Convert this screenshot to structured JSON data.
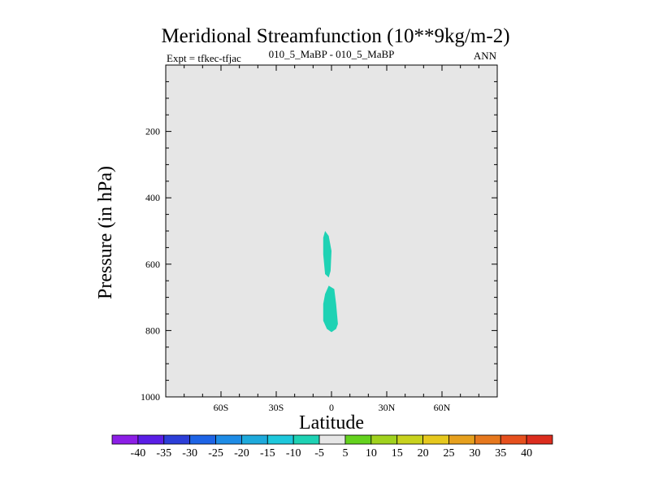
{
  "chart_data": {
    "type": "contour",
    "title": "Meridional Streamfunction (10**9kg/m-2)",
    "left_string": "Expt = tfkec-tfjac",
    "center_string": "010_5_MaBP - 010_5_MaBP",
    "right_string": "ANN",
    "xlabel": "Latitude",
    "ylabel": "Pressure (in hPa)",
    "x_range": [
      -90,
      90
    ],
    "y_range": [
      1000,
      0
    ],
    "x_ticks": [
      {
        "value": -60,
        "label": "60S"
      },
      {
        "value": -30,
        "label": "30S"
      },
      {
        "value": 0,
        "label": "0"
      },
      {
        "value": 30,
        "label": "30N"
      },
      {
        "value": 60,
        "label": "60N"
      }
    ],
    "y_ticks": [
      {
        "value": 200,
        "label": "200"
      },
      {
        "value": 400,
        "label": "400"
      },
      {
        "value": 600,
        "label": "600"
      },
      {
        "value": 800,
        "label": "800"
      },
      {
        "value": 1000,
        "label": "1000"
      }
    ],
    "background_color": "#e6e6e6",
    "filled_regions": [
      {
        "level_range": [
          -10,
          -5
        ],
        "color": "#1ed2b4",
        "points": [
          [
            -3.5,
            500
          ],
          [
            -1.5,
            515
          ],
          [
            0,
            560
          ],
          [
            -0.5,
            620
          ],
          [
            -1.5,
            640
          ],
          [
            -3.5,
            630
          ],
          [
            -4.5,
            570
          ],
          [
            -4.5,
            520
          ]
        ]
      },
      {
        "level_range": [
          -10,
          -5
        ],
        "color": "#1ed2b4",
        "points": [
          [
            -1.5,
            665
          ],
          [
            1.5,
            675
          ],
          [
            2.5,
            720
          ],
          [
            3.5,
            780
          ],
          [
            2.5,
            795
          ],
          [
            0,
            805
          ],
          [
            -2.5,
            795
          ],
          [
            -4.5,
            770
          ],
          [
            -4.5,
            720
          ],
          [
            -3.5,
            690
          ]
        ]
      }
    ],
    "colorbar": {
      "colors": [
        "#8c1ee6",
        "#5a1ee6",
        "#2c3ed8",
        "#1e64e6",
        "#1e8ce6",
        "#1eaadc",
        "#1ec8dc",
        "#1ed2b4",
        "#e6e6e6",
        "#64d21e",
        "#a0d21e",
        "#c8d21e",
        "#e6c81e",
        "#e6a01e",
        "#e6781e",
        "#e6501e",
        "#dc2d1e"
      ],
      "labels": [
        "-40",
        "-35",
        "-30",
        "-25",
        "-20",
        "-15",
        "-10",
        "-5",
        "5",
        "10",
        "15",
        "20",
        "25",
        "30",
        "35",
        "40"
      ]
    }
  }
}
